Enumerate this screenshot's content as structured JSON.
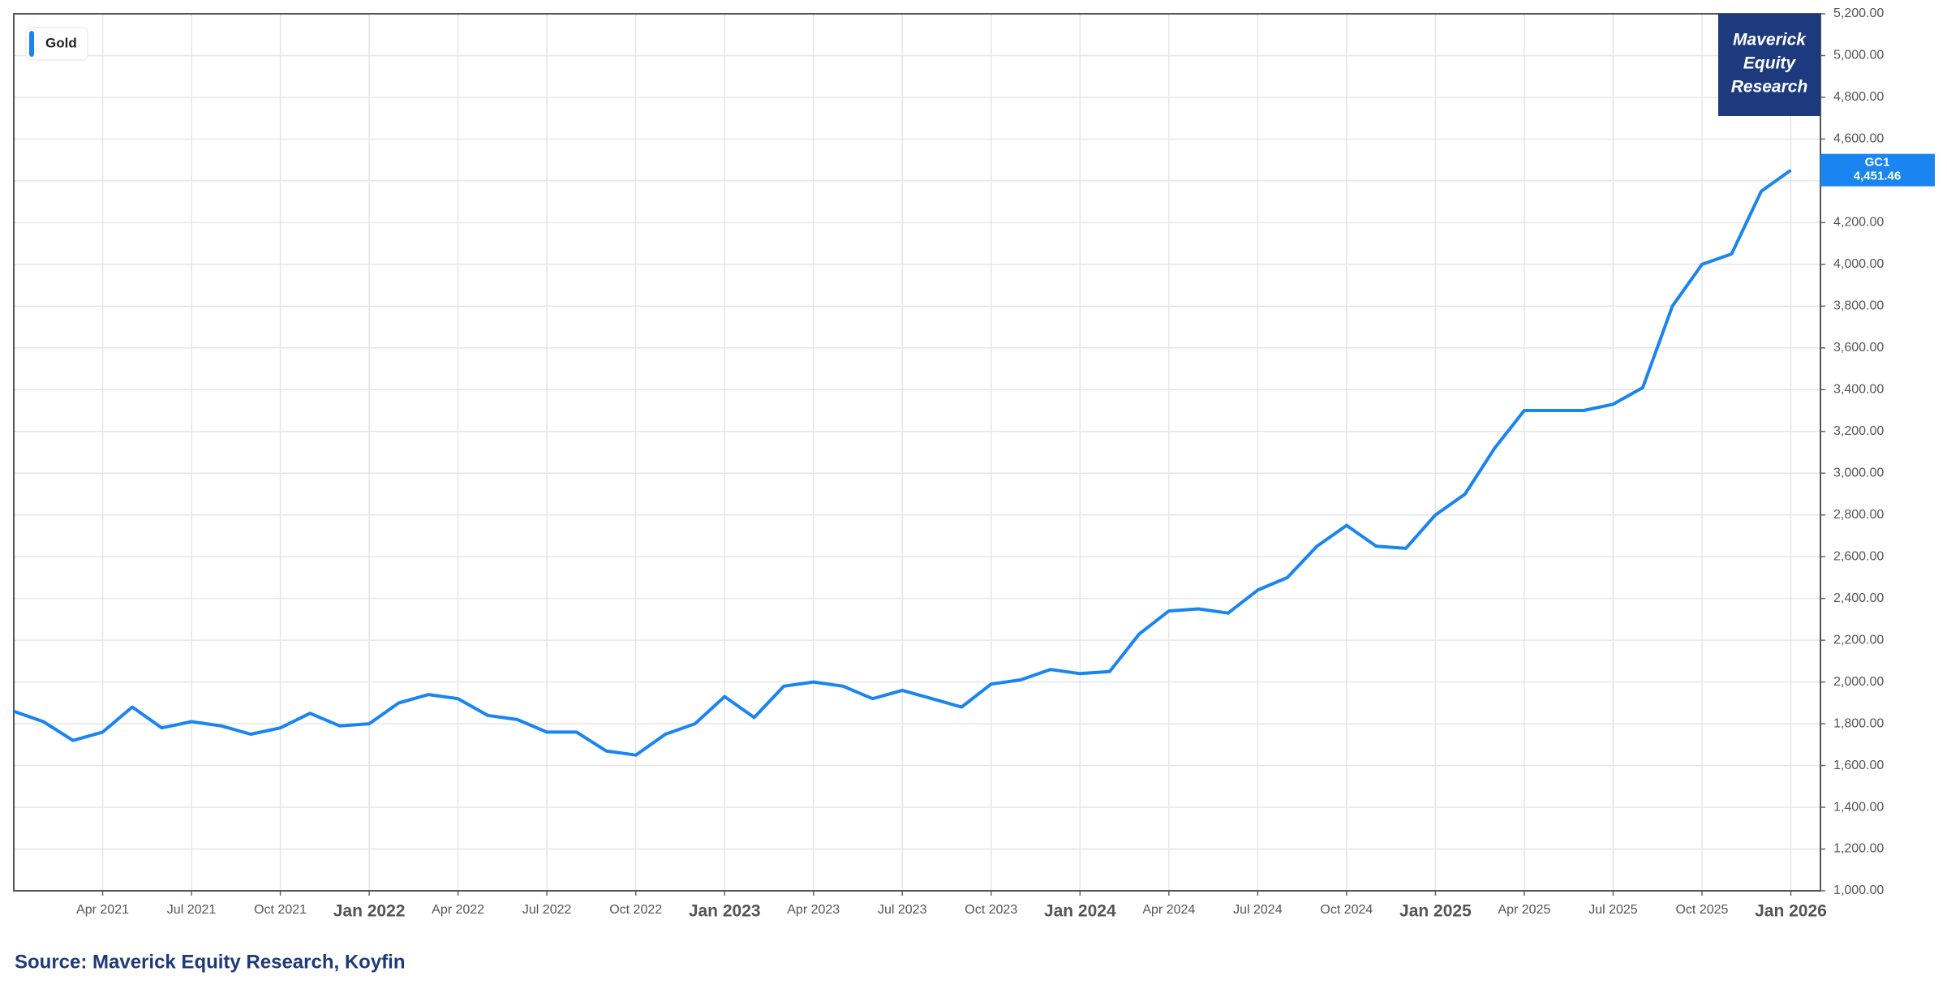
{
  "chart_data": {
    "type": "line",
    "watermark": "Maverick Equity Research",
    "source": "Source: Maverick Equity Research, Koyfin",
    "x": [
      "2021-01",
      "2021-02",
      "2021-03",
      "2021-04",
      "2021-05",
      "2021-06",
      "2021-07",
      "2021-08",
      "2021-09",
      "2021-10",
      "2021-11",
      "2021-12",
      "2022-01",
      "2022-02",
      "2022-03",
      "2022-04",
      "2022-05",
      "2022-06",
      "2022-07",
      "2022-08",
      "2022-09",
      "2022-10",
      "2022-11",
      "2022-12",
      "2023-01",
      "2023-02",
      "2023-03",
      "2023-04",
      "2023-05",
      "2023-06",
      "2023-07",
      "2023-08",
      "2023-09",
      "2023-10",
      "2023-11",
      "2023-12",
      "2024-01",
      "2024-02",
      "2024-03",
      "2024-04",
      "2024-05",
      "2024-06",
      "2024-07",
      "2024-08",
      "2024-09",
      "2024-10",
      "2024-11",
      "2024-12",
      "2025-01",
      "2025-02",
      "2025-03",
      "2025-04",
      "2025-05",
      "2025-06",
      "2025-07",
      "2025-08",
      "2025-09",
      "2025-10",
      "2025-11",
      "2025-12",
      "2026-01"
    ],
    "series": [
      {
        "name": "Gold",
        "color": "#1a85f0",
        "ticker": "GC1",
        "values": [
          1860,
          1810,
          1720,
          1760,
          1880,
          1780,
          1810,
          1790,
          1750,
          1780,
          1850,
          1790,
          1800,
          1900,
          1940,
          1920,
          1840,
          1820,
          1760,
          1760,
          1670,
          1650,
          1750,
          1800,
          1930,
          1830,
          1980,
          2000,
          1980,
          1920,
          1960,
          1920,
          1880,
          1990,
          2010,
          2060,
          2040,
          2050,
          2230,
          2340,
          2350,
          2330,
          2440,
          2500,
          2650,
          2750,
          2650,
          2640,
          2800,
          2900,
          3120,
          3300,
          3300,
          3300,
          3330,
          3410,
          3800,
          4000,
          4050,
          4350,
          4451.46
        ],
        "value_labels": [
          null,
          null,
          null,
          null,
          null,
          null,
          null,
          null,
          null,
          null,
          null,
          null,
          null,
          null,
          null,
          null,
          null,
          null,
          null,
          null,
          null,
          null,
          null,
          null,
          null,
          null,
          null,
          null,
          null,
          null,
          null,
          null,
          null,
          null,
          null,
          null,
          null,
          null,
          null,
          null,
          null,
          null,
          null,
          null,
          null,
          null,
          null,
          null,
          null,
          null,
          null,
          null,
          null,
          null,
          null,
          null,
          null,
          null,
          null,
          null,
          "4,451.46"
        ]
      }
    ],
    "xlim": [
      "2021-01",
      "2026-02"
    ],
    "xticks": [
      {
        "value": "2021-04",
        "label": "Apr 2021"
      },
      {
        "value": "2021-07",
        "label": "Jul 2021"
      },
      {
        "value": "2021-10",
        "label": "Oct 2021"
      },
      {
        "value": "2022-01",
        "label": "Jan 2022"
      },
      {
        "value": "2022-04",
        "label": "Apr 2022"
      },
      {
        "value": "2022-07",
        "label": "Jul 2022"
      },
      {
        "value": "2022-10",
        "label": "Oct 2022"
      },
      {
        "value": "2023-01",
        "label": "Jan 2023"
      },
      {
        "value": "2023-04",
        "label": "Apr 2023"
      },
      {
        "value": "2023-07",
        "label": "Jul 2023"
      },
      {
        "value": "2023-10",
        "label": "Oct 2023"
      },
      {
        "value": "2024-01",
        "label": "Jan 2024"
      },
      {
        "value": "2024-04",
        "label": "Apr 2024"
      },
      {
        "value": "2024-07",
        "label": "Jul 2024"
      },
      {
        "value": "2024-10",
        "label": "Oct 2024"
      },
      {
        "value": "2025-01",
        "label": "Jan 2025"
      },
      {
        "value": "2025-04",
        "label": "Apr 2025"
      },
      {
        "value": "2025-07",
        "label": "Jul 2025"
      },
      {
        "value": "2025-10",
        "label": "Oct 2025"
      },
      {
        "value": "2026-01",
        "label": "Jan 2026"
      }
    ],
    "ylim": [
      1000,
      5200
    ],
    "yticks": [
      {
        "value": 1000,
        "label": "1,000.00"
      },
      {
        "value": 1200,
        "label": "1,200.00"
      },
      {
        "value": 1400,
        "label": "1,400.00"
      },
      {
        "value": 1600,
        "label": "1,600.00"
      },
      {
        "value": 1800,
        "label": "1,800.00"
      },
      {
        "value": 2000,
        "label": "2,000.00"
      },
      {
        "value": 2200,
        "label": "2,200.00"
      },
      {
        "value": 2400,
        "label": "2,400.00"
      },
      {
        "value": 2600,
        "label": "2,600.00"
      },
      {
        "value": 2800,
        "label": "2,800.00"
      },
      {
        "value": 3000,
        "label": "3,000.00"
      },
      {
        "value": 3200,
        "label": "3,200.00"
      },
      {
        "value": 3400,
        "label": "3,400.00"
      },
      {
        "value": 3600,
        "label": "3,600.00"
      },
      {
        "value": 3800,
        "label": "3,800.00"
      },
      {
        "value": 4000,
        "label": "4,000.00"
      },
      {
        "value": 4200,
        "label": "4,200.00"
      },
      {
        "value": 4400,
        "label": "4,400.00"
      },
      {
        "value": 4600,
        "label": "4,600.00"
      },
      {
        "value": 4800,
        "label": "4,800.00"
      },
      {
        "value": 5000,
        "label": "5,000.00"
      },
      {
        "value": 5200,
        "label": "5,200.00"
      }
    ],
    "grid": true,
    "legend": "top-left"
  }
}
